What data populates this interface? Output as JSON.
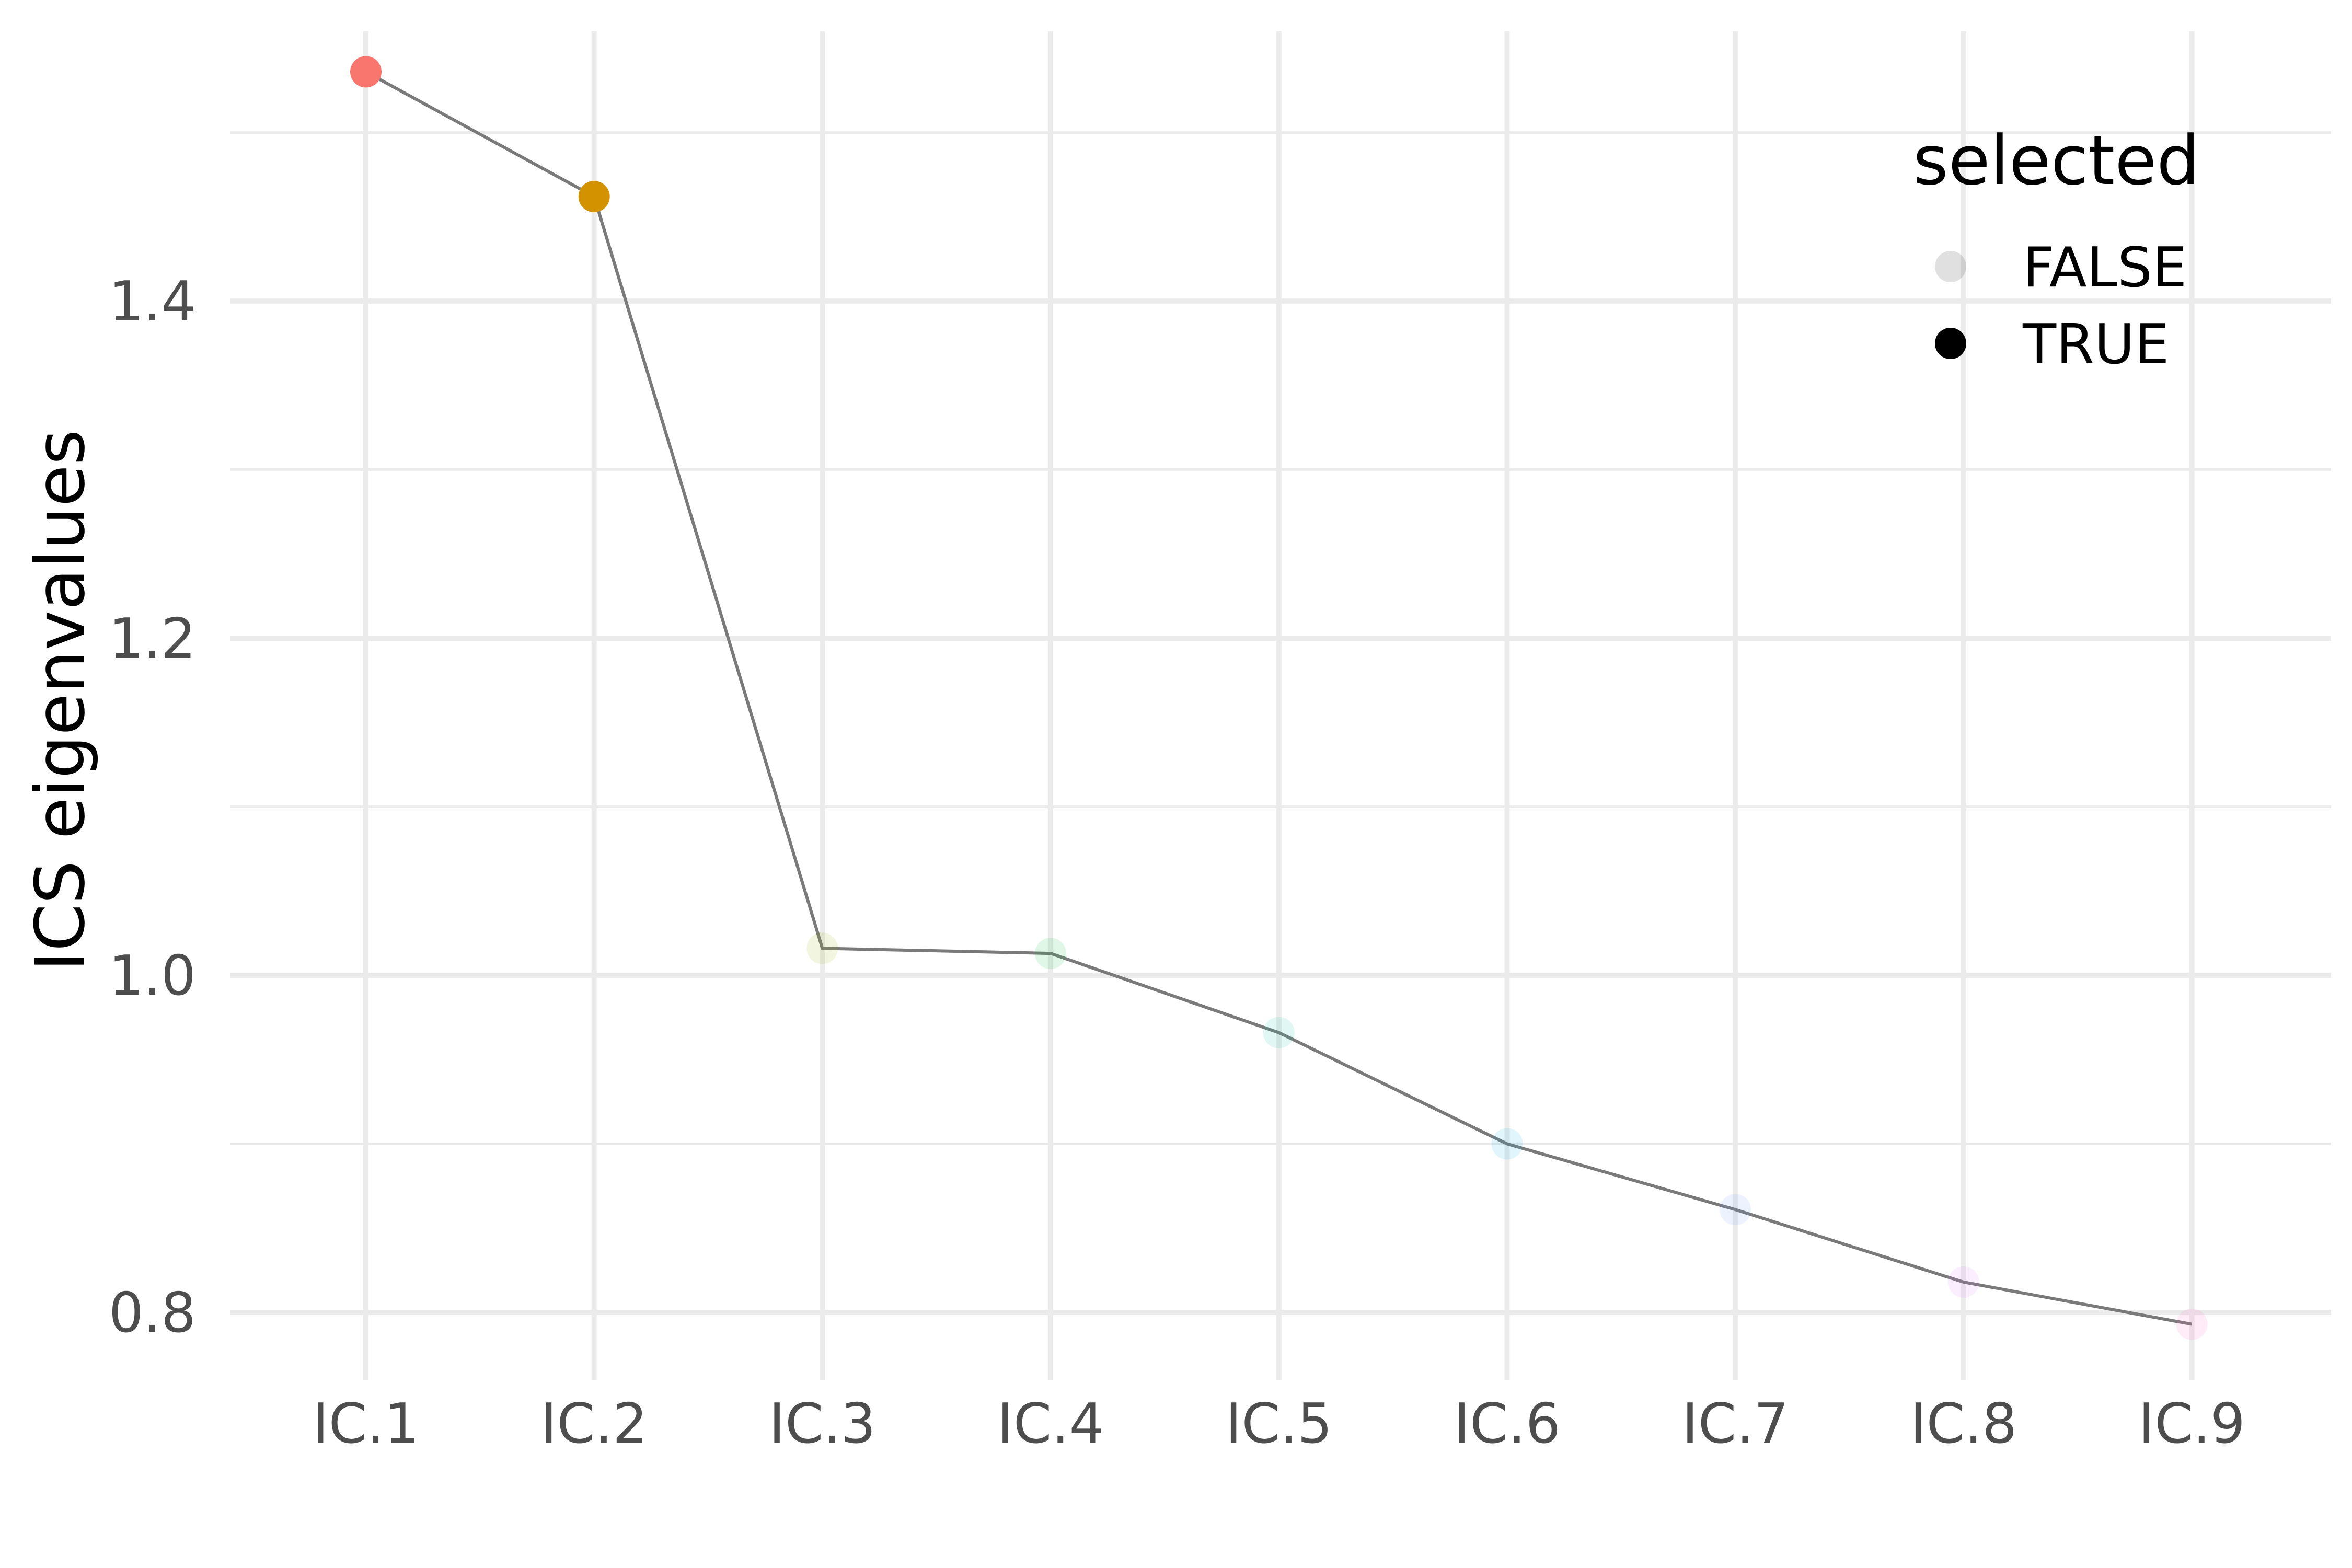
{
  "chart_data": {
    "type": "line",
    "title": "",
    "xlabel": "",
    "ylabel": "ICS eigenvalues",
    "categories": [
      "IC.1",
      "IC.2",
      "IC.3",
      "IC.4",
      "IC.5",
      "IC.6",
      "IC.7",
      "IC.8",
      "IC.9"
    ],
    "values": [
      1.536,
      1.462,
      1.016,
      1.013,
      0.966,
      0.9,
      0.861,
      0.818,
      0.793
    ],
    "selected": [
      true,
      true,
      false,
      false,
      false,
      false,
      false,
      false,
      false
    ],
    "point_colors": [
      "#F8766D",
      "#D39200",
      "#93AA00",
      "#00BA38",
      "#00C19F",
      "#00B9E3",
      "#619CFF",
      "#DB72FB",
      "#FF61C3"
    ],
    "line_color": "#7a7a7a",
    "ylim": [
      0.76,
      1.56
    ],
    "yticks": [
      0.8,
      1.0,
      1.2,
      1.4
    ],
    "ytick_labels": [
      "0.8",
      "1.0",
      "1.2",
      "1.4"
    ],
    "grid": true,
    "legend": {
      "title": "selected",
      "placement": "top-right",
      "entries": [
        {
          "label": "FALSE",
          "selected": false
        },
        {
          "label": "TRUE",
          "selected": true
        }
      ]
    }
  }
}
